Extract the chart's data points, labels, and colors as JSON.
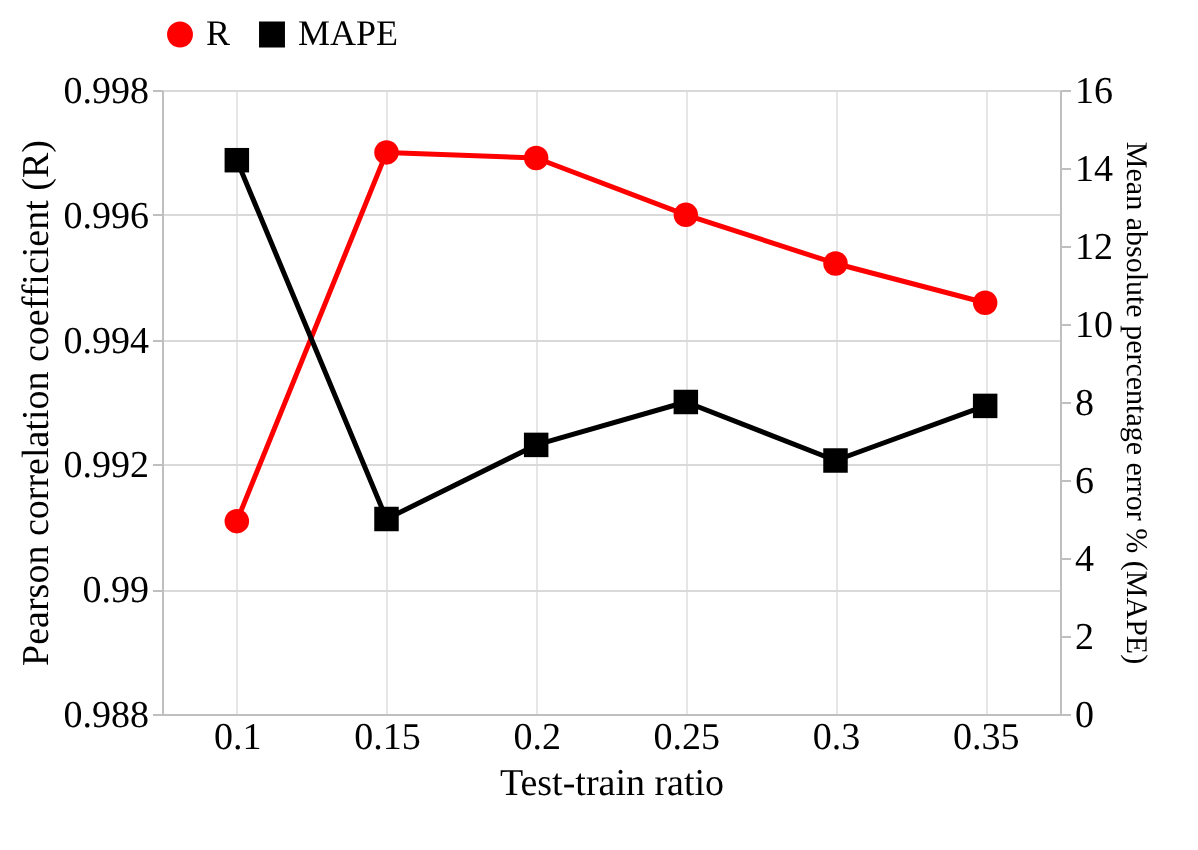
{
  "chart_data": {
    "type": "line",
    "xlabel": "Test-train ratio",
    "ylabel": "Pearson correlation coefficient (R)",
    "y2label": "Mean absolute percentage error % (MAPE)",
    "categories": [
      "0.1",
      "0.15",
      "0.2",
      "0.25",
      "0.3",
      "0.35"
    ],
    "series": [
      {
        "name": "R",
        "color": "#ff0000",
        "marker": "circle",
        "values": [
          0.99109,
          0.997,
          0.99691,
          0.996,
          0.99522,
          0.99459
        ]
      },
      {
        "name": "MAPE",
        "color": "#000000",
        "marker": "square",
        "axis": "y2",
        "values": [
          14.2,
          5.0,
          6.9,
          8.0,
          6.5,
          7.9
        ]
      }
    ],
    "ylim": [
      0.988,
      0.998
    ],
    "yticks": [
      0.988,
      0.99,
      0.992,
      0.994,
      0.996,
      0.998
    ],
    "y2lim": [
      0,
      16
    ],
    "y2ticks": [
      0,
      2,
      4,
      6,
      8,
      10,
      12,
      14,
      16
    ],
    "grid": true,
    "legend": "top",
    "line_style": "solid"
  }
}
